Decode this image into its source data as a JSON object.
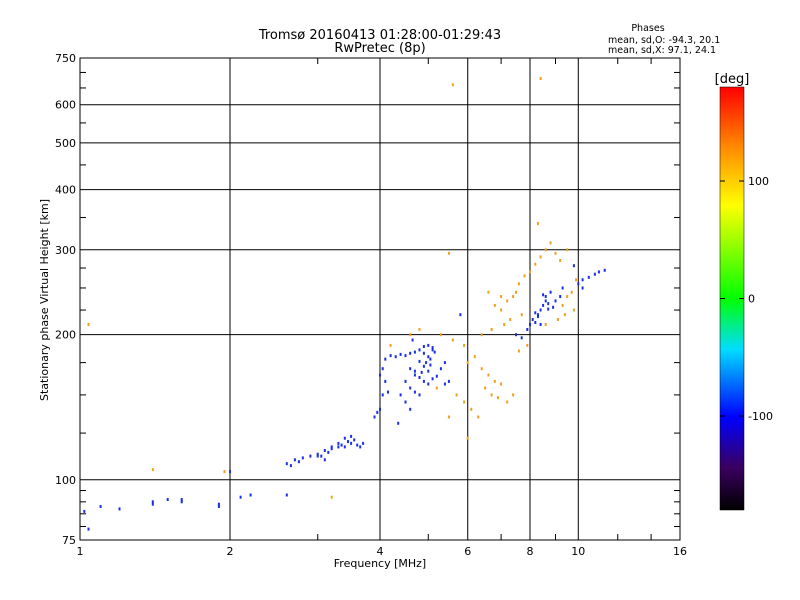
{
  "chart_data": {
    "type": "scatter",
    "title": "Tromsø 20160413 01:28:00-01:29:43",
    "subtitle": "RwPretec (8p)",
    "xlabel": "Frequency [MHz]",
    "ylabel": "Stationary phase Virtual Height [km]",
    "x_scale": "log",
    "y_scale": "log",
    "xlim": [
      1,
      16
    ],
    "ylim": [
      75,
      750
    ],
    "x_ticks": [
      1,
      2,
      4,
      6,
      8,
      10,
      16
    ],
    "y_ticks": [
      75,
      100,
      200,
      300,
      400,
      500,
      600,
      750
    ],
    "grid": true,
    "stats": {
      "heading": "Phases",
      "line_o": "mean, sd,O: -94.3, 20.1",
      "line_x": "mean, sd,X:  97.1, 24.1"
    },
    "colorbar": {
      "label": "[deg]",
      "range": [
        -180,
        180
      ],
      "ticks": [
        100,
        0,
        -100
      ]
    },
    "series": [
      {
        "name": "O",
        "color": "#1a2fe6",
        "points": [
          [
            1.02,
            86
          ],
          [
            1.04,
            79
          ],
          [
            1.1,
            88
          ],
          [
            1.2,
            87
          ],
          [
            1.4,
            89
          ],
          [
            1.4,
            90
          ],
          [
            1.5,
            91
          ],
          [
            1.6,
            91
          ],
          [
            1.6,
            90
          ],
          [
            1.9,
            89
          ],
          [
            1.9,
            88
          ],
          [
            2.1,
            92
          ],
          [
            2.0,
            104
          ],
          [
            2.2,
            93
          ],
          [
            2.6,
            93
          ],
          [
            2.6,
            108
          ],
          [
            2.65,
            107
          ],
          [
            2.7,
            110
          ],
          [
            2.75,
            109
          ],
          [
            2.8,
            111
          ],
          [
            2.9,
            112
          ],
          [
            3.0,
            113
          ],
          [
            3.05,
            112
          ],
          [
            3.1,
            115
          ],
          [
            3.15,
            114
          ],
          [
            3.2,
            116
          ],
          [
            3.3,
            117
          ],
          [
            3.35,
            118
          ],
          [
            3.4,
            117
          ],
          [
            3.45,
            120
          ],
          [
            3.5,
            119
          ],
          [
            3.55,
            121
          ],
          [
            3.6,
            118
          ],
          [
            3.65,
            117
          ],
          [
            3.7,
            119
          ],
          [
            3.2,
            117
          ],
          [
            3.3,
            119
          ],
          [
            3.4,
            122
          ],
          [
            3.5,
            123
          ],
          [
            3.0,
            112
          ],
          [
            3.1,
            110
          ],
          [
            3.9,
            135
          ],
          [
            3.95,
            138
          ],
          [
            4.0,
            140
          ],
          [
            4.05,
            150
          ],
          [
            4.1,
            160
          ],
          [
            4.15,
            152
          ],
          [
            4.0,
            165
          ],
          [
            4.05,
            170
          ],
          [
            4.1,
            178
          ],
          [
            4.2,
            181
          ],
          [
            4.3,
            180
          ],
          [
            4.4,
            182
          ],
          [
            4.5,
            181
          ],
          [
            4.6,
            183
          ],
          [
            4.7,
            184
          ],
          [
            4.8,
            186
          ],
          [
            4.9,
            189
          ],
          [
            5.0,
            190
          ],
          [
            5.1,
            188
          ],
          [
            4.9,
            183
          ],
          [
            5.0,
            180
          ],
          [
            5.05,
            178
          ],
          [
            5.1,
            186
          ],
          [
            5.15,
            184
          ],
          [
            4.8,
            176
          ],
          [
            4.9,
            172
          ],
          [
            5.0,
            168
          ],
          [
            4.7,
            165
          ],
          [
            4.8,
            163
          ],
          [
            4.9,
            160
          ],
          [
            5.0,
            158
          ],
          [
            5.1,
            162
          ],
          [
            5.2,
            164
          ],
          [
            4.6,
            170
          ],
          [
            4.7,
            168
          ],
          [
            4.85,
            167
          ],
          [
            4.5,
            160
          ],
          [
            4.6,
            155
          ],
          [
            4.7,
            152
          ],
          [
            4.8,
            150
          ],
          [
            5.3,
            170
          ],
          [
            5.4,
            175
          ],
          [
            4.4,
            150
          ],
          [
            4.5,
            145
          ],
          [
            4.6,
            140
          ],
          [
            4.35,
            131
          ],
          [
            4.65,
            195
          ],
          [
            5.4,
            158
          ],
          [
            5.5,
            160
          ],
          [
            4.95,
            175
          ],
          [
            5.05,
            173
          ],
          [
            7.5,
            200
          ],
          [
            7.7,
            197
          ],
          [
            7.9,
            205
          ],
          [
            8.0,
            210
          ],
          [
            8.1,
            215
          ],
          [
            8.2,
            212
          ],
          [
            8.3,
            220
          ],
          [
            8.4,
            225
          ],
          [
            8.5,
            230
          ],
          [
            8.6,
            235
          ],
          [
            8.7,
            232
          ],
          [
            8.5,
            242
          ],
          [
            8.6,
            240
          ],
          [
            8.8,
            245
          ],
          [
            8.7,
            226
          ],
          [
            8.9,
            228
          ],
          [
            9.0,
            235
          ],
          [
            8.2,
            222
          ],
          [
            8.3,
            218
          ],
          [
            8.4,
            210
          ],
          [
            9.2,
            240
          ],
          [
            9.3,
            250
          ],
          [
            10.2,
            260
          ],
          [
            10.5,
            263
          ],
          [
            10.8,
            267
          ],
          [
            11.0,
            270
          ],
          [
            11.3,
            272
          ],
          [
            10.0,
            255
          ],
          [
            10.2,
            250
          ],
          [
            9.8,
            278
          ],
          [
            5.8,
            220
          ]
        ]
      },
      {
        "name": "X",
        "color": "#f0a020",
        "points": [
          [
            1.04,
            210
          ],
          [
            1.4,
            105
          ],
          [
            1.95,
            104
          ],
          [
            3.2,
            92
          ],
          [
            5.6,
            660
          ],
          [
            8.4,
            680
          ],
          [
            5.5,
            295
          ],
          [
            4.8,
            205
          ],
          [
            5.3,
            200
          ],
          [
            5.6,
            195
          ],
          [
            5.9,
            190
          ],
          [
            6.0,
            175
          ],
          [
            6.2,
            180
          ],
          [
            6.4,
            170
          ],
          [
            6.6,
            165
          ],
          [
            6.8,
            160
          ],
          [
            7.0,
            158
          ],
          [
            6.5,
            155
          ],
          [
            6.7,
            150
          ],
          [
            6.9,
            148
          ],
          [
            7.2,
            145
          ],
          [
            7.4,
            150
          ],
          [
            5.2,
            155
          ],
          [
            5.7,
            150
          ],
          [
            5.9,
            145
          ],
          [
            6.1,
            140
          ],
          [
            6.3,
            135
          ],
          [
            6.0,
            122
          ],
          [
            5.5,
            135
          ],
          [
            6.6,
            245
          ],
          [
            6.8,
            230
          ],
          [
            7.0,
            225
          ],
          [
            7.2,
            235
          ],
          [
            7.4,
            240
          ],
          [
            7.6,
            255
          ],
          [
            7.8,
            265
          ],
          [
            8.0,
            270
          ],
          [
            8.2,
            280
          ],
          [
            8.4,
            290
          ],
          [
            8.6,
            300
          ],
          [
            8.8,
            310
          ],
          [
            9.0,
            295
          ],
          [
            9.2,
            285
          ],
          [
            9.5,
            300
          ],
          [
            8.3,
            340
          ],
          [
            7.0,
            240
          ],
          [
            7.5,
            245
          ],
          [
            9.3,
            230
          ],
          [
            9.5,
            240
          ],
          [
            9.7,
            245
          ],
          [
            9.1,
            215
          ],
          [
            9.4,
            220
          ],
          [
            9.8,
            225
          ],
          [
            8.6,
            210
          ],
          [
            7.9,
            190
          ],
          [
            7.6,
            185
          ],
          [
            6.4,
            200
          ],
          [
            6.7,
            205
          ],
          [
            7.1,
            210
          ],
          [
            7.3,
            215
          ],
          [
            7.7,
            220
          ],
          [
            9.9,
            260
          ],
          [
            4.2,
            190
          ],
          [
            4.6,
            200
          ]
        ]
      }
    ]
  }
}
